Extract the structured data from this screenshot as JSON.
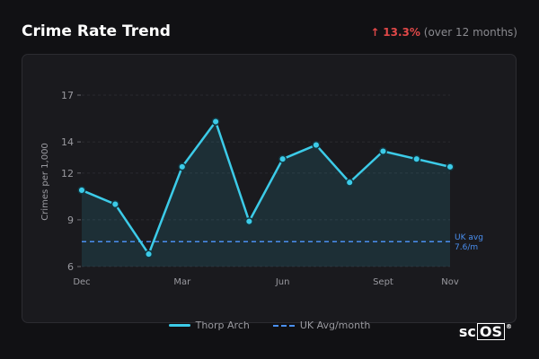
{
  "header": {
    "title": "Crime Rate Trend",
    "change_arrow": "↑",
    "change_value": "13.3%",
    "change_period": "(over 12 months)"
  },
  "colors": {
    "series_line": "#3ccbe8",
    "avg_line": "#4a8ff0",
    "change_up": "#e04848"
  },
  "logo": {
    "text_a": "sc",
    "text_b": "OS",
    "mark": "®"
  },
  "chart_data": {
    "type": "line",
    "title": "",
    "ylabel": "Crimes per 1,000",
    "xlabel": "",
    "ylim": [
      6,
      17
    ],
    "yticks": [
      6,
      9,
      12,
      14,
      17
    ],
    "x_tick_labels": [
      {
        "index": 0,
        "label": "Dec"
      },
      {
        "index": 3,
        "label": "Mar"
      },
      {
        "index": 6,
        "label": "Jun"
      },
      {
        "index": 9,
        "label": "Sept"
      },
      {
        "index": 11,
        "label": "Nov"
      }
    ],
    "series": [
      {
        "name": "Thorp Arch",
        "values": [
          10.9,
          10.0,
          6.8,
          12.4,
          15.3,
          8.9,
          12.9,
          13.8,
          11.4,
          13.4,
          12.9,
          12.4
        ]
      }
    ],
    "reference_line": {
      "name": "UK Avg/month",
      "value": 7.6,
      "label_line1": "UK avg",
      "label_line2": "7.6/m"
    },
    "grid": true,
    "legend_position": "bottom-center"
  }
}
